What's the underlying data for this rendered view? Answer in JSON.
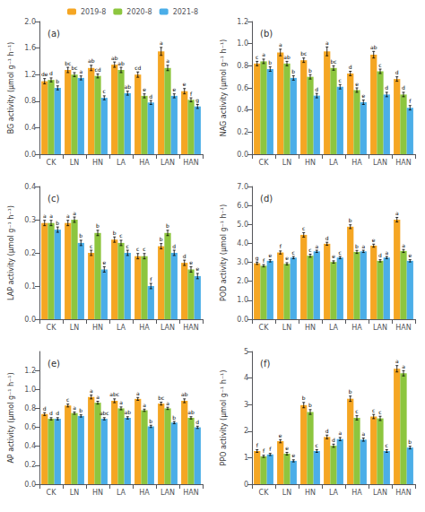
{
  "chart_data": [
    {
      "type": "bar",
      "title": "(a)",
      "ylabel": "BG activity (μmol g⁻¹ h⁻¹)",
      "categories": [
        "CK",
        "LN",
        "HN",
        "LA",
        "HA",
        "LAN",
        "HAN"
      ],
      "ylim": [
        0,
        2.0
      ],
      "yticks": [
        {
          "value": 0.0,
          "label": "0.0"
        },
        0.4,
        0.8,
        1.2,
        1.6,
        {
          "value": 2.0,
          "label": "2.0"
        }
      ],
      "grid": false,
      "legend": "upper right",
      "series": [
        {
          "name": "2019-8",
          "color": "#F5A623",
          "values": [
            1.1,
            1.27,
            1.3,
            1.35,
            1.2,
            1.55,
            0.95
          ],
          "errors": [
            0.04,
            0.04,
            0.04,
            0.04,
            0.04,
            0.06,
            0.04
          ],
          "letters": [
            "de",
            "bc",
            "ab",
            "ab",
            "cd",
            "a",
            "e"
          ]
        },
        {
          "name": "2020-8",
          "color": "#8DC63F",
          "values": [
            1.12,
            1.2,
            1.18,
            1.27,
            0.88,
            1.3,
            0.82
          ],
          "errors": [
            0.03,
            0.03,
            0.03,
            0.04,
            0.03,
            0.04,
            0.03
          ],
          "letters": [
            "d",
            "bc",
            "cd",
            "ab",
            "e",
            "a",
            "f"
          ]
        },
        {
          "name": "2021-8",
          "color": "#4BAEE8",
          "values": [
            1.0,
            1.15,
            0.85,
            0.92,
            0.78,
            0.88,
            0.72
          ],
          "errors": [
            0.03,
            0.03,
            0.03,
            0.03,
            0.03,
            0.03,
            0.03
          ],
          "letters": [
            "b",
            "a",
            "c",
            "ab",
            "d",
            "e",
            "g"
          ]
        }
      ]
    },
    {
      "type": "bar",
      "title": "(b)",
      "ylabel": "NAG activity (μmol g⁻¹ h⁻¹)",
      "categories": [
        "CK",
        "LN",
        "HN",
        "LA",
        "HA",
        "LAN",
        "HAN"
      ],
      "ylim": [
        0,
        1.2
      ],
      "yticks": [
        {
          "value": 0.0,
          "label": "0.0"
        },
        0.2,
        0.4,
        0.6,
        0.8,
        {
          "value": 1.0,
          "label": "1.0"
        },
        1.2
      ],
      "grid": false,
      "series": [
        {
          "name": "2019-8",
          "color": "#F5A623",
          "values": [
            0.82,
            0.92,
            0.85,
            0.93,
            0.73,
            0.9,
            0.68
          ],
          "errors": [
            0.02,
            0.03,
            0.02,
            0.04,
            0.02,
            0.03,
            0.02
          ],
          "letters": [
            "c",
            "a",
            "bc",
            "a",
            "d",
            "ab",
            "d"
          ]
        },
        {
          "name": "2020-8",
          "color": "#8DC63F",
          "values": [
            0.84,
            0.82,
            0.7,
            0.78,
            0.58,
            0.75,
            0.54
          ],
          "errors": [
            0.02,
            0.02,
            0.02,
            0.02,
            0.02,
            0.02,
            0.02
          ],
          "letters": [
            "a",
            "ab",
            "b",
            "bc",
            "e",
            "c",
            "d"
          ]
        },
        {
          "name": "2021-8",
          "color": "#4BAEE8",
          "values": [
            0.77,
            0.69,
            0.53,
            0.61,
            0.47,
            0.54,
            0.42
          ],
          "errors": [
            0.02,
            0.02,
            0.02,
            0.02,
            0.02,
            0.02,
            0.02
          ],
          "letters": [
            "b",
            "b",
            "d",
            "c",
            "e",
            "d",
            "f"
          ]
        }
      ]
    },
    {
      "type": "bar",
      "title": "(c)",
      "ylabel": "LAP activity (μmol g⁻¹ h⁻¹)",
      "categories": [
        "CK",
        "LN",
        "HN",
        "LA",
        "HA",
        "LAN",
        "HAN"
      ],
      "ylim": [
        0,
        0.4
      ],
      "yticks": [
        {
          "value": 0.0,
          "label": "0.0"
        },
        0.1,
        0.2,
        0.3,
        0.4
      ],
      "grid": false,
      "series": [
        {
          "name": "2019-8",
          "color": "#F5A623",
          "values": [
            0.29,
            0.29,
            0.2,
            0.24,
            0.19,
            0.22,
            0.17
          ],
          "errors": [
            0.008,
            0.008,
            0.008,
            0.008,
            0.008,
            0.008,
            0.008
          ],
          "letters": [
            "a",
            "a",
            "c",
            "b",
            "c",
            "b",
            "d"
          ]
        },
        {
          "name": "2020-8",
          "color": "#8DC63F",
          "values": [
            0.29,
            0.3,
            0.26,
            0.23,
            0.19,
            0.26,
            0.15
          ],
          "errors": [
            0.008,
            0.008,
            0.008,
            0.008,
            0.008,
            0.008,
            0.008
          ],
          "letters": [
            "a",
            "a",
            "b",
            "c",
            "c",
            "b",
            "e"
          ]
        },
        {
          "name": "2021-8",
          "color": "#4BAEE8",
          "values": [
            0.27,
            0.23,
            0.15,
            0.2,
            0.1,
            0.2,
            0.13
          ],
          "errors": [
            0.008,
            0.008,
            0.008,
            0.008,
            0.008,
            0.008,
            0.008
          ],
          "letters": [
            "b",
            "b",
            "e",
            "c",
            "f",
            "d",
            "e"
          ]
        }
      ]
    },
    {
      "type": "bar",
      "title": "(d)",
      "ylabel": "POD activity (μmol g⁻¹ h⁻¹)",
      "categories": [
        "CK",
        "LN",
        "HN",
        "LA",
        "HA",
        "LAN",
        "HAN"
      ],
      "ylim": [
        0,
        7.0
      ],
      "yticks": [
        {
          "value": 0.0,
          "label": "0.0"
        },
        {
          "value": 1.0,
          "label": "1.0"
        },
        {
          "value": 2.0,
          "label": "2.0"
        },
        {
          "value": 3.0,
          "label": "3.0"
        },
        {
          "value": 4.0,
          "label": "4.0"
        },
        {
          "value": 5.0,
          "label": "5.0"
        },
        {
          "value": 6.0,
          "label": "6.0"
        },
        {
          "value": 7.0,
          "label": "7.0"
        }
      ],
      "grid": false,
      "series": [
        {
          "name": "2019-8",
          "color": "#F5A623",
          "values": [
            2.95,
            3.52,
            4.45,
            3.98,
            4.88,
            3.88,
            5.25
          ],
          "errors": [
            0.06,
            0.08,
            0.12,
            0.08,
            0.1,
            0.08,
            0.12
          ],
          "letters": [
            "g",
            "f",
            "c",
            "d",
            "b",
            "e",
            "a"
          ]
        },
        {
          "name": "2020-8",
          "color": "#8DC63F",
          "values": [
            2.82,
            2.92,
            3.35,
            3.02,
            3.55,
            3.08,
            3.6
          ],
          "errors": [
            0.06,
            0.06,
            0.08,
            0.06,
            0.08,
            0.06,
            0.08
          ],
          "letters": [
            "f",
            "e",
            "c",
            "e",
            "b",
            "d",
            "a"
          ]
        },
        {
          "name": "2021-8",
          "color": "#4BAEE8",
          "values": [
            3.08,
            3.25,
            3.58,
            3.25,
            3.58,
            3.25,
            3.08
          ],
          "errors": [
            0.06,
            0.06,
            0.06,
            0.06,
            0.06,
            0.06,
            0.06
          ],
          "letters": [
            "e",
            "c",
            "a",
            "c",
            "a",
            "a",
            "e"
          ]
        }
      ]
    },
    {
      "type": "bar",
      "title": "(e)",
      "ylabel": "AP activity (μmol g⁻¹ h⁻¹)",
      "categories": [
        "CK",
        "LN",
        "HN",
        "LA",
        "HA",
        "LAN",
        "HAN"
      ],
      "ylim": [
        0,
        1.4
      ],
      "yticks": [
        {
          "value": 0.0,
          "label": "0.0"
        },
        0.2,
        0.4,
        0.6,
        0.8,
        {
          "value": 1.0,
          "label": "1.0"
        },
        1.2
      ],
      "grid": false,
      "series": [
        {
          "name": "2019-8",
          "color": "#F5A623",
          "values": [
            0.74,
            0.83,
            0.92,
            0.88,
            0.9,
            0.85,
            0.88
          ],
          "errors": [
            0.015,
            0.015,
            0.02,
            0.02,
            0.015,
            0.015,
            0.02
          ],
          "letters": [
            "d",
            "c",
            "a",
            "abc",
            "a",
            "bc",
            "ab"
          ]
        },
        {
          "name": "2020-8",
          "color": "#8DC63F",
          "values": [
            0.69,
            0.75,
            0.86,
            0.8,
            0.78,
            0.8,
            0.7
          ],
          "errors": [
            0.012,
            0.012,
            0.015,
            0.015,
            0.012,
            0.012,
            0.012
          ],
          "letters": [
            "d",
            "a",
            "a",
            "a",
            "a",
            "a",
            "ab"
          ]
        },
        {
          "name": "2021-8",
          "color": "#4BAEE8",
          "values": [
            0.69,
            0.72,
            0.69,
            0.7,
            0.61,
            0.65,
            0.6
          ],
          "errors": [
            0.012,
            0.012,
            0.012,
            0.012,
            0.012,
            0.012,
            0.012
          ],
          "letters": [
            "d",
            "b",
            "abc",
            "ab",
            "b",
            "b",
            "d"
          ]
        }
      ]
    },
    {
      "type": "bar",
      "title": "(f)",
      "ylabel": "PPO activity (μmol g⁻¹ h⁻¹)",
      "categories": [
        "CK",
        "LN",
        "HN",
        "LA",
        "HA",
        "LAN",
        "HAN"
      ],
      "ylim": [
        0,
        5.0
      ],
      "yticks": [
        0,
        1,
        2,
        3,
        4,
        5
      ],
      "grid": false,
      "series": [
        {
          "name": "2019-8",
          "color": "#F5A623",
          "values": [
            1.25,
            1.62,
            2.98,
            1.78,
            3.22,
            2.55,
            4.35
          ],
          "errors": [
            0.05,
            0.06,
            0.1,
            0.07,
            0.1,
            0.08,
            0.12
          ],
          "letters": [
            "f",
            "e",
            "b",
            "d",
            "b",
            "c",
            "a"
          ]
        },
        {
          "name": "2020-8",
          "color": "#8DC63F",
          "values": [
            1.05,
            1.15,
            2.72,
            1.45,
            2.5,
            2.48,
            4.18
          ],
          "errors": [
            0.04,
            0.05,
            0.09,
            0.06,
            0.08,
            0.08,
            0.1
          ],
          "letters": [
            "f",
            "e",
            "b",
            "d",
            "c",
            "c",
            "a"
          ]
        },
        {
          "name": "2021-8",
          "color": "#4BAEE8",
          "values": [
            1.12,
            0.88,
            1.25,
            1.7,
            1.68,
            1.25,
            1.38
          ],
          "errors": [
            0.04,
            0.04,
            0.05,
            0.06,
            0.06,
            0.05,
            0.05
          ],
          "letters": [
            "f",
            "e",
            "c",
            "a",
            "a",
            "c",
            "b"
          ]
        }
      ]
    }
  ]
}
